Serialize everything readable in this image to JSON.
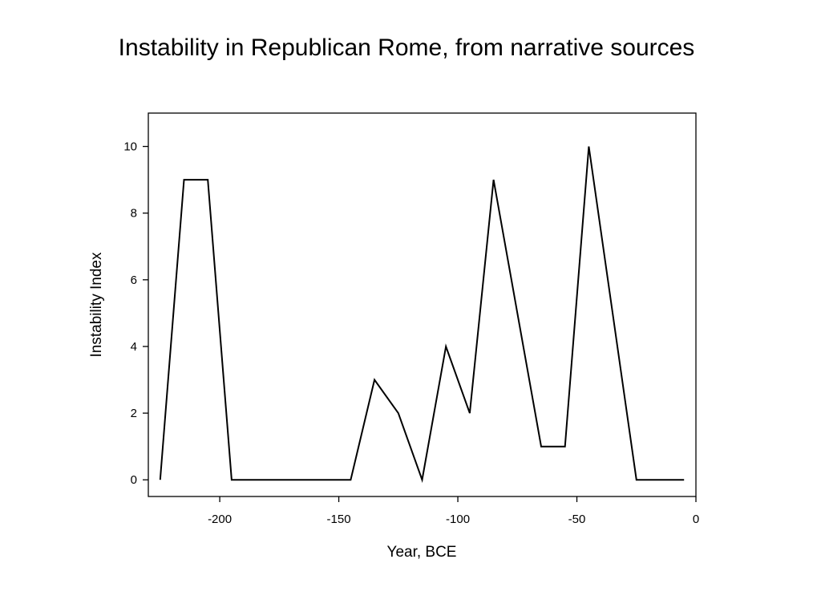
{
  "chart_data": {
    "type": "line",
    "title": "Instability in Republican Rome, from narrative sources",
    "xlabel": "Year, BCE",
    "ylabel": "Instability Index",
    "xlim": [
      -230,
      0
    ],
    "ylim": [
      -0.5,
      11
    ],
    "xticks": [
      -200,
      -150,
      -100,
      -50,
      0
    ],
    "yticks": [
      0,
      2,
      4,
      6,
      8,
      10
    ],
    "grid": false,
    "series": [
      {
        "x": [
          -225,
          -215,
          -205,
          -195,
          -185,
          -175,
          -165,
          -155,
          -145,
          -135,
          -125,
          -115,
          -105,
          -95,
          -85,
          -75,
          -65,
          -55,
          -45,
          -35,
          -25,
          -15,
          -5
        ],
        "y": [
          0,
          9,
          9,
          0,
          0,
          0,
          0,
          0,
          0,
          3,
          2,
          0,
          4,
          2,
          9,
          5,
          1,
          1,
          10,
          5,
          0,
          0,
          0
        ],
        "color": "#000000"
      }
    ]
  }
}
